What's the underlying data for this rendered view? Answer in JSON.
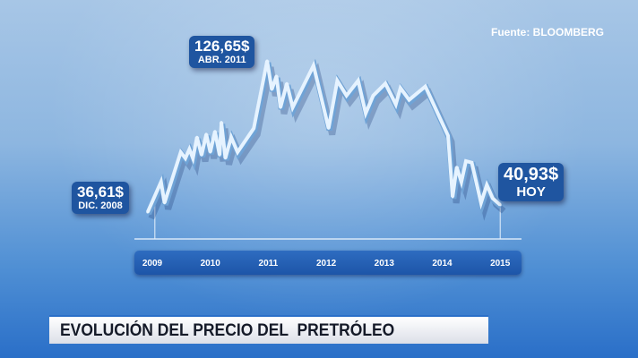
{
  "source": "Fuente: BLOOMBERG",
  "title": "EVOLUCIÓN DEL PRECIO DEL  PRETRÓLEO",
  "colors": {
    "line": "#e6f3ff",
    "label_bg": "#1f55a0",
    "axis_band": "#1d55a8"
  },
  "chart_data": {
    "type": "line",
    "title": "EVOLUCIÓN DEL PRECIO DEL  PRETRÓLEO",
    "xlabel": "",
    "ylabel": "",
    "x_ticks": [
      "2009",
      "2010",
      "2011",
      "2012",
      "2013",
      "2014",
      "2015"
    ],
    "xlim": [
      2008.9,
      2015.1
    ],
    "ylim": [
      30,
      135
    ],
    "grid": false,
    "points": [
      [
        2008.92,
        36.61
      ],
      [
        2009.15,
        54.6
      ],
      [
        2009.21,
        42.1
      ],
      [
        2009.49,
        72.3
      ],
      [
        2009.57,
        68.7
      ],
      [
        2009.64,
        74.1
      ],
      [
        2009.7,
        68.7
      ],
      [
        2009.77,
        81.2
      ],
      [
        2009.85,
        70.6
      ],
      [
        2009.93,
        83.0
      ],
      [
        2010.0,
        72.3
      ],
      [
        2010.08,
        84.7
      ],
      [
        2010.16,
        70.6
      ],
      [
        2010.19,
        90.1
      ],
      [
        2010.26,
        68.7
      ],
      [
        2010.36,
        81.2
      ],
      [
        2010.47,
        72.3
      ],
      [
        2010.75,
        86.5
      ],
      [
        2010.98,
        126.65
      ],
      [
        2011.06,
        109.6
      ],
      [
        2011.14,
        117.6
      ],
      [
        2011.21,
        98.9
      ],
      [
        2011.32,
        113.2
      ],
      [
        2011.42,
        98.9
      ],
      [
        2011.78,
        123.9
      ],
      [
        2012.04,
        86.5
      ],
      [
        2012.19,
        114.9
      ],
      [
        2012.35,
        106.0
      ],
      [
        2012.55,
        114.9
      ],
      [
        2012.68,
        95.4
      ],
      [
        2012.81,
        106.0
      ],
      [
        2013.02,
        113.2
      ],
      [
        2013.2,
        100.7
      ],
      [
        2013.28,
        110.5
      ],
      [
        2013.43,
        103.4
      ],
      [
        2013.71,
        111.4
      ],
      [
        2014.1,
        82.1
      ],
      [
        2014.18,
        45.7
      ],
      [
        2014.25,
        63.4
      ],
      [
        2014.33,
        54.6
      ],
      [
        2014.41,
        67.0
      ],
      [
        2014.51,
        66.1
      ],
      [
        2014.67,
        42.1
      ],
      [
        2014.77,
        52.8
      ],
      [
        2014.87,
        44.8
      ],
      [
        2015.0,
        40.93
      ]
    ],
    "annotations": [
      {
        "value": "36,61$",
        "date": "DIC. 2008"
      },
      {
        "value": "126,65$",
        "date": "ABR. 2011"
      },
      {
        "value": "40,93$",
        "date": "HOY"
      }
    ]
  }
}
